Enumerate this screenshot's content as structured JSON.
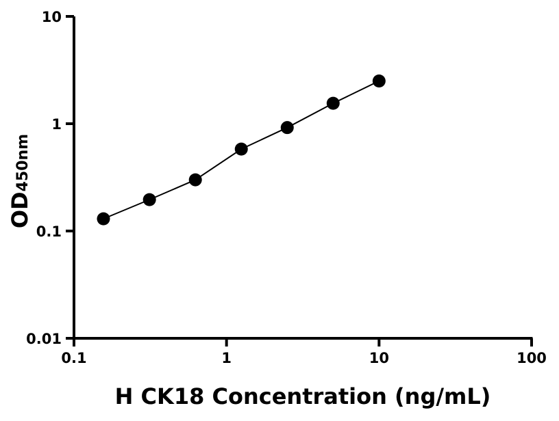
{
  "chart_data": {
    "type": "line",
    "title": "",
    "xlabel": "H CK18 Concentration (ng/mL)",
    "ylabel": "OD",
    "ylabel_subscript": "450nm",
    "xscale": "log",
    "yscale": "log",
    "xlim": [
      0.1,
      100
    ],
    "ylim": [
      0.01,
      10
    ],
    "xticks": [
      {
        "value": 0.1,
        "label": "0.1"
      },
      {
        "value": 1,
        "label": "1"
      },
      {
        "value": 10,
        "label": "10"
      },
      {
        "value": 100,
        "label": "100"
      }
    ],
    "yticks": [
      {
        "value": 0.01,
        "label": "0.01"
      },
      {
        "value": 0.1,
        "label": "0.1"
      },
      {
        "value": 1,
        "label": "1"
      },
      {
        "value": 10,
        "label": "10"
      }
    ],
    "grid": false,
    "series": [
      {
        "x": [
          0.156,
          0.3125,
          0.625,
          1.25,
          2.5,
          5,
          10
        ],
        "y": [
          0.13,
          0.196,
          0.3,
          0.58,
          0.92,
          1.55,
          2.5
        ],
        "color": "#000000",
        "marker": "circle"
      }
    ]
  }
}
